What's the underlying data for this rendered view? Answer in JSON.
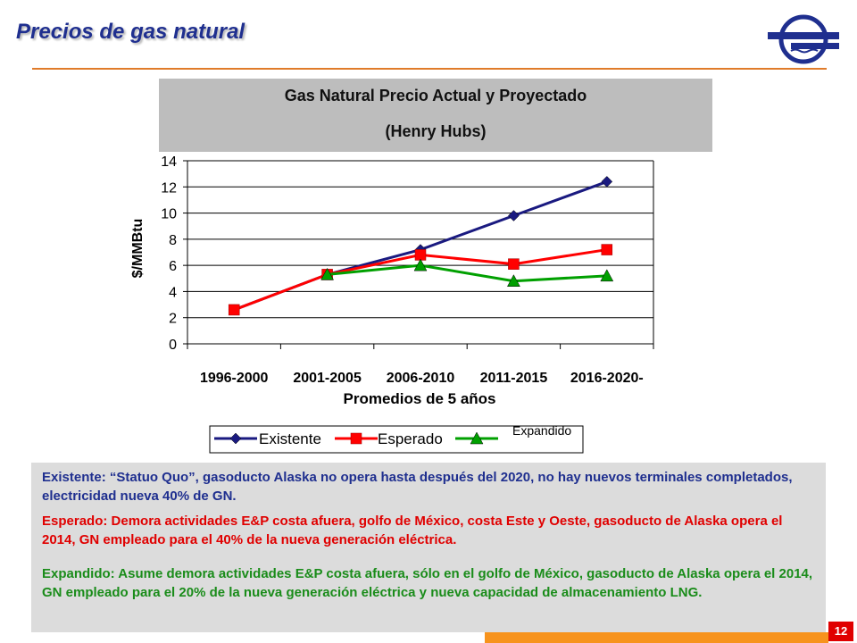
{
  "slide": {
    "title": "Precios de gas natural",
    "page_number": "12"
  },
  "colors": {
    "accent_orange": "#e07b2a",
    "title_blue": "#1f2f8f",
    "page_red": "#e00000"
  },
  "chart_data": {
    "type": "line",
    "title": "Gas Natural Precio Actual y Proyectado",
    "subtitle": "(Henry Hubs)",
    "xlabel": "Promedios de 5 años",
    "ylabel": "$/MMBtu",
    "ylim": [
      0,
      14
    ],
    "yticks": [
      "0",
      "2",
      "4",
      "6",
      "8",
      "10",
      "12",
      "14"
    ],
    "categories": [
      "1996-2000",
      "2001-2005",
      "2006-2010",
      "2011-2015",
      "2016-2020-"
    ],
    "series": [
      {
        "name": "Existente",
        "color": "#1a1a80",
        "marker": "diamond",
        "values": [
          2.6,
          5.3,
          7.2,
          9.8,
          12.4
        ]
      },
      {
        "name": "Esperado",
        "color": "#ff0000",
        "marker": "square",
        "values": [
          2.6,
          5.3,
          6.8,
          6.1,
          7.2
        ]
      },
      {
        "name": "Expandido",
        "color": "#00a000",
        "marker": "triangle",
        "values": [
          null,
          5.3,
          6.0,
          4.8,
          5.2
        ]
      }
    ],
    "legend_position": "bottom"
  },
  "notes": {
    "existente": "Existente: “Statuo Quo”, gasoducto Alaska no opera hasta después del 2020, no hay nuevos terminales completados, electricidad nueva 40% de GN.",
    "esperado": "Esperado: Demora actividades E&P costa afuera, golfo de México, costa Este y Oeste, gasoducto de Alaska opera el 2014, GN empleado para el 40% de la nueva generación eléctrica.",
    "expandido": "Expandido: Asume demora actividades E&P costa afuera, sólo en el golfo de México, gasoducto de Alaska opera el 2014, GN empleado para el 20% de la nueva generación eléctrica y nueva capacidad de almacenamiento LNG."
  }
}
